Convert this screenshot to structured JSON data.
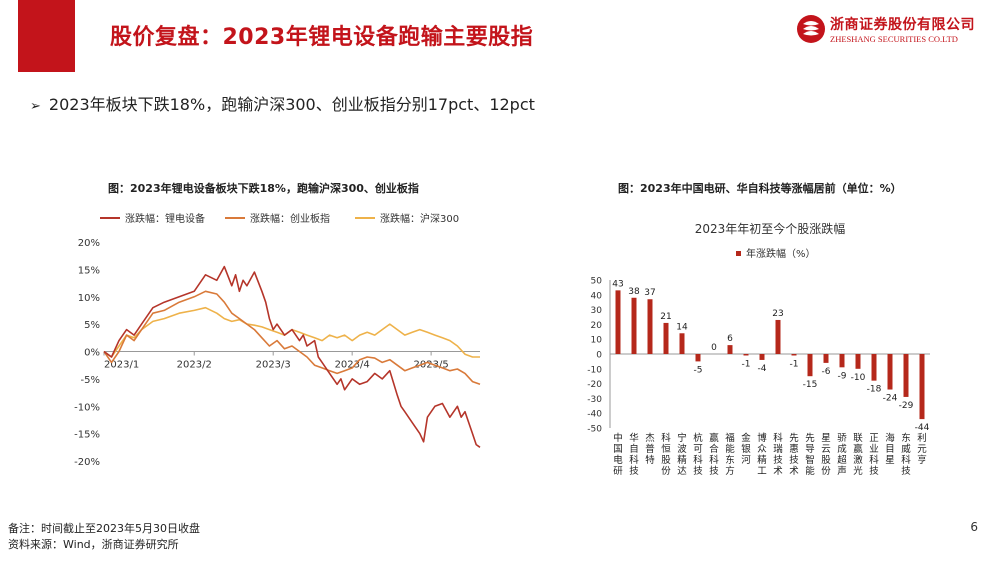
{
  "slide": {
    "title": "股价复盘：2023年锂电设备跑输主要股指",
    "bullet": "2023年板块下跌18%，跑输沪深300、创业板指分别17pct、12pct",
    "note": "备注：时间截止至2023年5月30日收盘",
    "source": "资料来源：Wind，浙商证券研究所",
    "page_number": "6",
    "icons": {
      "bullet": "arrow-bullet-icon",
      "logo": "zheshang-logo-icon"
    },
    "colors": {
      "brand_red": "#c3141b",
      "bar_red": "#b5281b"
    }
  },
  "logo": {
    "name_cn": "浙商证券股份有限公司",
    "name_en": "ZHESHANG SECURITIES CO.LTD"
  },
  "chart_data": [
    {
      "type": "line",
      "title": "图：2023年锂电设备板块下跌18%，跑输沪深300、创业板指",
      "x_ticks": [
        "2023/1",
        "2023/2",
        "2023/3",
        "2023/4",
        "2023/5"
      ],
      "y_ticks": [
        "20%",
        "15%",
        "10%",
        "5%",
        "0%",
        "-5%",
        "-10%",
        "-15%",
        "-20%"
      ],
      "ylim": [
        -20,
        20
      ],
      "xlim": [
        0,
        100
      ],
      "legend_position": "top",
      "grid": false,
      "series": [
        {
          "name": "涨跌幅：锂电设备",
          "color": "#b5352a",
          "x": [
            0,
            2,
            4,
            6,
            8,
            10,
            13,
            16,
            20,
            24,
            27,
            30,
            32,
            34,
            35,
            36,
            37,
            38,
            40,
            42,
            43,
            44,
            45,
            46,
            48,
            50,
            52,
            53,
            54,
            56,
            57,
            58,
            60,
            62,
            63,
            64,
            66,
            68,
            70,
            72,
            74,
            76,
            78,
            79,
            80,
            82,
            84,
            85,
            86,
            88,
            90,
            92,
            94,
            95,
            96,
            98,
            99,
            100
          ],
          "y": [
            0,
            -1,
            2,
            4,
            3,
            5,
            8,
            9,
            10,
            11,
            14,
            13,
            15.5,
            12,
            14,
            11,
            13,
            12,
            14.5,
            11,
            9,
            6,
            4,
            5,
            3,
            4,
            2,
            3,
            1,
            2,
            -1,
            -2,
            -4,
            -6,
            -5,
            -7,
            -5,
            -6,
            -5.5,
            -4,
            -5,
            -3.5,
            -8,
            -10,
            -11,
            -13,
            -15,
            -16.5,
            -12,
            -10,
            -9.5,
            -12,
            -10,
            -12,
            -11,
            -15,
            -17,
            -17.5
          ]
        },
        {
          "name": "涨跌幅：创业板指",
          "color": "#d97a3a",
          "x": [
            0,
            2,
            4,
            6,
            8,
            10,
            13,
            16,
            20,
            24,
            27,
            30,
            32,
            34,
            36,
            38,
            40,
            42,
            44,
            46,
            48,
            50,
            52,
            54,
            56,
            58,
            60,
            62,
            64,
            66,
            68,
            70,
            72,
            74,
            76,
            78,
            80,
            82,
            84,
            86,
            88,
            90,
            92,
            94,
            96,
            98,
            100
          ],
          "y": [
            0,
            -2,
            0,
            3,
            2,
            4,
            7,
            7.5,
            9,
            10,
            11,
            10.5,
            9,
            7,
            6,
            5,
            4,
            2.5,
            1,
            2,
            0.5,
            1,
            0,
            -1,
            -2.5,
            -3,
            -3.5,
            -4,
            -3.5,
            -3,
            -1.5,
            -1,
            -1.2,
            -2,
            -1.5,
            -2.5,
            -3.5,
            -3,
            -2.5,
            -2,
            -2.5,
            -3,
            -3.5,
            -3.2,
            -4,
            -5.5,
            -6
          ]
        },
        {
          "name": "涨跌幅：沪深300",
          "color": "#eeb24a",
          "x": [
            0,
            2,
            4,
            6,
            8,
            10,
            13,
            16,
            20,
            24,
            27,
            30,
            32,
            34,
            36,
            38,
            40,
            42,
            44,
            46,
            48,
            50,
            52,
            54,
            56,
            58,
            60,
            62,
            64,
            66,
            68,
            70,
            72,
            74,
            76,
            78,
            80,
            82,
            84,
            86,
            88,
            90,
            92,
            94,
            96,
            98,
            100
          ],
          "y": [
            0,
            -1,
            1,
            3,
            2.5,
            4,
            5.5,
            6,
            7,
            7.5,
            8,
            7,
            6,
            5.5,
            5.8,
            5,
            4.8,
            4.5,
            4,
            3.5,
            3,
            4,
            3.5,
            3,
            2.5,
            2,
            3,
            2.5,
            3,
            2,
            3,
            3.5,
            3,
            4,
            5,
            4,
            3,
            3.5,
            4,
            3.5,
            3,
            2.5,
            2,
            1,
            -0.5,
            -1,
            -1
          ]
        }
      ]
    },
    {
      "type": "bar",
      "title": "图：2023年中国电研、华自科技等涨幅居前（单位：%）",
      "subtitle": "2023年年初至今个股涨跌幅",
      "legend": "年涨跌幅（%）",
      "legend_position": "top",
      "grid": false,
      "categories": [
        "中国电研",
        "华自科技",
        "杰普特",
        "科恒股份",
        "宁波精达",
        "杭可科技",
        "赢合科技",
        "福能东方",
        "金银河",
        "博众精工",
        "科瑞技术",
        "先惠技术",
        "先导智能",
        "星云股份",
        "骄成超声",
        "联赢激光",
        "正业科技",
        "海目星",
        "东威科技",
        "利元亨"
      ],
      "values": [
        43,
        38,
        37,
        21,
        14,
        -5,
        0,
        6,
        -1,
        -4,
        23,
        -1,
        -15,
        -6,
        -9,
        -10,
        -18,
        -24,
        -29,
        -44
      ],
      "data_labels": [
        "43",
        "38",
        "37",
        "21",
        "14",
        "-5",
        "0",
        "6",
        "-1",
        "-4",
        "23",
        "-1",
        "-15",
        "-6",
        "-9",
        "-10",
        "-18",
        "-24",
        "-29",
        "-44"
      ],
      "y_ticks": [
        "50",
        "40",
        "30",
        "20",
        "10",
        "0",
        "-10",
        "-20",
        "-30",
        "-40",
        "-50"
      ],
      "ylim": [
        -50,
        50
      ]
    }
  ]
}
